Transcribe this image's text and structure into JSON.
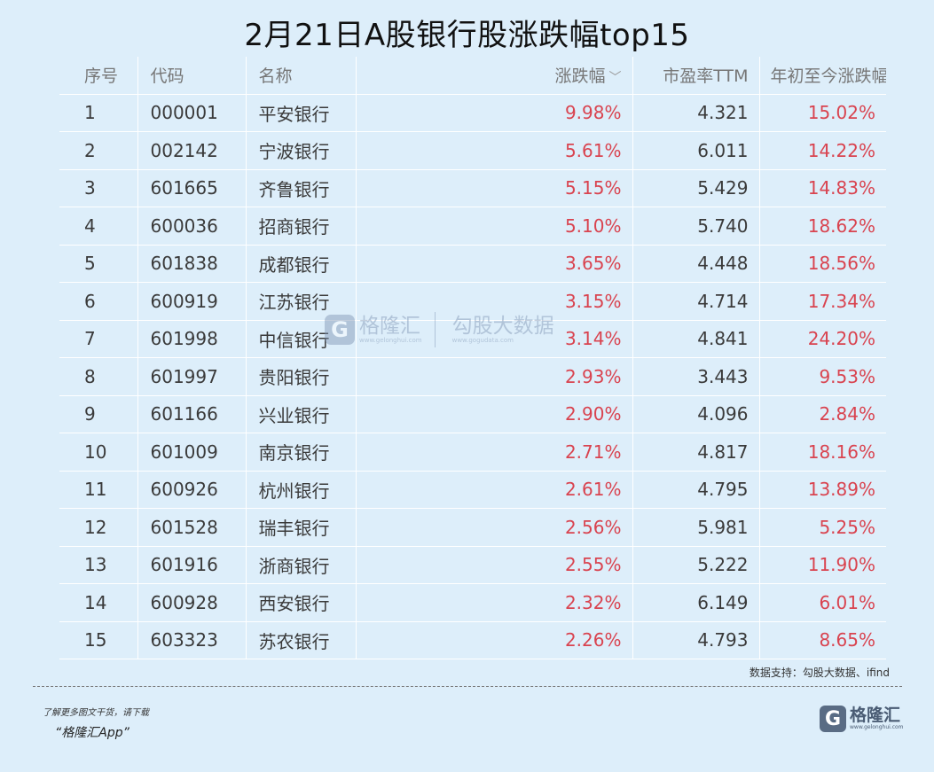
{
  "title": "2月21日A股银行股涨跌幅top15",
  "headers": {
    "idx": "序号",
    "code": "代码",
    "name": "名称",
    "change": "涨跌幅",
    "pe": "市盈率TTM",
    "ytd": "年初至今涨跌幅"
  },
  "rows": [
    {
      "idx": "1",
      "code": "000001",
      "name": "平安银行",
      "change": "9.98%",
      "pe": "4.321",
      "ytd": "15.02%"
    },
    {
      "idx": "2",
      "code": "002142",
      "name": "宁波银行",
      "change": "5.61%",
      "pe": "6.011",
      "ytd": "14.22%"
    },
    {
      "idx": "3",
      "code": "601665",
      "name": "齐鲁银行",
      "change": "5.15%",
      "pe": "5.429",
      "ytd": "14.83%"
    },
    {
      "idx": "4",
      "code": "600036",
      "name": "招商银行",
      "change": "5.10%",
      "pe": "5.740",
      "ytd": "18.62%"
    },
    {
      "idx": "5",
      "code": "601838",
      "name": "成都银行",
      "change": "3.65%",
      "pe": "4.448",
      "ytd": "18.56%"
    },
    {
      "idx": "6",
      "code": "600919",
      "name": "江苏银行",
      "change": "3.15%",
      "pe": "4.714",
      "ytd": "17.34%"
    },
    {
      "idx": "7",
      "code": "601998",
      "name": "中信银行",
      "change": "3.14%",
      "pe": "4.841",
      "ytd": "24.20%"
    },
    {
      "idx": "8",
      "code": "601997",
      "name": "贵阳银行",
      "change": "2.93%",
      "pe": "3.443",
      "ytd": "9.53%"
    },
    {
      "idx": "9",
      "code": "601166",
      "name": "兴业银行",
      "change": "2.90%",
      "pe": "4.096",
      "ytd": "2.84%"
    },
    {
      "idx": "10",
      "code": "601009",
      "name": "南京银行",
      "change": "2.71%",
      "pe": "4.817",
      "ytd": "18.16%"
    },
    {
      "idx": "11",
      "code": "600926",
      "name": "杭州银行",
      "change": "2.61%",
      "pe": "4.795",
      "ytd": "13.89%"
    },
    {
      "idx": "12",
      "code": "601528",
      "name": "瑞丰银行",
      "change": "2.56%",
      "pe": "5.981",
      "ytd": "5.25%"
    },
    {
      "idx": "13",
      "code": "601916",
      "name": "浙商银行",
      "change": "2.55%",
      "pe": "5.222",
      "ytd": "11.90%"
    },
    {
      "idx": "14",
      "code": "600928",
      "name": "西安银行",
      "change": "2.32%",
      "pe": "6.149",
      "ytd": "6.01%"
    },
    {
      "idx": "15",
      "code": "603323",
      "name": "苏农银行",
      "change": "2.26%",
      "pe": "4.793",
      "ytd": "8.65%"
    }
  ],
  "source": "数据支持：勾股大数据、ifind",
  "footer": {
    "download_tip": "了解更多图文干货，请下载",
    "app_name": "“格隆汇App”"
  },
  "logo": {
    "mark": "G",
    "name": "格隆汇",
    "url": "www.gelonghui.com"
  },
  "watermark": {
    "mark": "G",
    "name1": "格隆汇",
    "url1": "www.gelonghui.com",
    "name2": "勾股大数据",
    "url2": "www.gogudata.com"
  },
  "colors": {
    "background": "#ddeefa",
    "positive": "#d9434f",
    "brand": "#4a5c74"
  }
}
